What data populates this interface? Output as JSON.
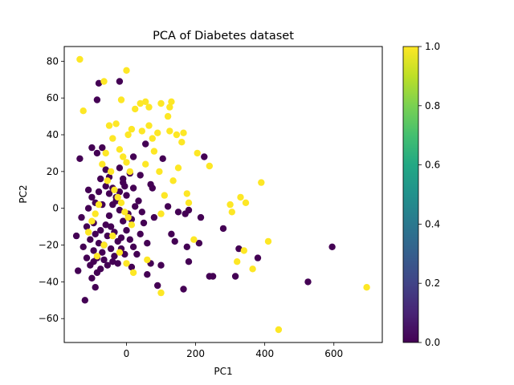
{
  "chart_data": {
    "type": "scatter",
    "title": "PCA of Diabetes dataset",
    "xlabel": "PC1",
    "ylabel": "PC2",
    "xlim": [
      -180,
      740
    ],
    "ylim": [
      -73,
      88
    ],
    "xticks": [
      0,
      200,
      400,
      600
    ],
    "xtick_labels": [
      "0",
      "200",
      "400",
      "600"
    ],
    "yticks": [
      -60,
      -40,
      -20,
      0,
      20,
      40,
      60,
      80
    ],
    "ytick_labels": [
      "−60",
      "−40",
      "−20",
      "0",
      "20",
      "40",
      "60",
      "80"
    ],
    "colorbar": {
      "colormap": "viridis",
      "range": [
        0.0,
        1.0
      ],
      "ticks": [
        0.0,
        0.2,
        0.4,
        0.6,
        0.8,
        1.0
      ],
      "tick_labels": [
        "0.0",
        "0.2",
        "0.4",
        "0.6",
        "0.8",
        "1.0"
      ]
    },
    "colors": {
      "class_0": "#440154",
      "class_1": "#fde725"
    },
    "series": [
      {
        "class_value": 0,
        "points": [
          [
            -135,
            27
          ],
          [
            -80,
            68
          ],
          [
            -85,
            59
          ],
          [
            -20,
            69
          ],
          [
            -100,
            33
          ],
          [
            -85,
            30
          ],
          [
            -70,
            33
          ],
          [
            -60,
            21
          ],
          [
            -75,
            16
          ],
          [
            -50,
            17
          ],
          [
            -20,
            22
          ],
          [
            -10,
            16
          ],
          [
            -5,
            12
          ],
          [
            40,
            18
          ],
          [
            20,
            28
          ],
          [
            55,
            35
          ],
          [
            105,
            27
          ],
          [
            70,
            13
          ],
          [
            75,
            11
          ],
          [
            120,
            1
          ],
          [
            170,
            -3
          ],
          [
            180,
            -1
          ],
          [
            215,
            -5
          ],
          [
            225,
            28
          ],
          [
            280,
            -11
          ],
          [
            240,
            -37
          ],
          [
            250,
            -37
          ],
          [
            315,
            -37
          ],
          [
            325,
            -22
          ],
          [
            380,
            -27
          ],
          [
            525,
            -40
          ],
          [
            595,
            -21
          ],
          [
            165,
            -44
          ],
          [
            90,
            -42
          ],
          [
            60,
            -36
          ],
          [
            15,
            -32
          ],
          [
            -40,
            -29
          ],
          [
            -90,
            -43
          ],
          [
            -100,
            -38
          ],
          [
            -120,
            -50
          ],
          [
            -140,
            -34
          ],
          [
            -145,
            -15
          ],
          [
            -130,
            -5
          ],
          [
            -110,
            0
          ],
          [
            -95,
            -8
          ],
          [
            -90,
            -14
          ],
          [
            -80,
            -19
          ],
          [
            -70,
            -24
          ],
          [
            -60,
            -9
          ],
          [
            -50,
            -4
          ],
          [
            -40,
            2
          ],
          [
            -30,
            6
          ],
          [
            -20,
            -1
          ],
          [
            -10,
            -7
          ],
          [
            0,
            -12
          ],
          [
            10,
            -17
          ],
          [
            20,
            -21
          ],
          [
            30,
            -25
          ],
          [
            40,
            -14
          ],
          [
            50,
            -8
          ],
          [
            60,
            -19
          ],
          [
            70,
            -30
          ],
          [
            80,
            -5
          ],
          [
            -125,
            -21
          ],
          [
            -115,
            -27
          ],
          [
            -105,
            -31
          ],
          [
            -95,
            -23
          ],
          [
            -85,
            -27
          ],
          [
            -75,
            -33
          ],
          [
            -65,
            -20
          ],
          [
            -55,
            -15
          ],
          [
            -45,
            -10
          ],
          [
            -35,
            -13
          ],
          [
            -25,
            -18
          ],
          [
            -15,
            -22
          ],
          [
            -5,
            -25
          ],
          [
            5,
            -3
          ],
          [
            15,
            -6
          ],
          [
            25,
            1
          ],
          [
            35,
            4
          ],
          [
            45,
            -2
          ],
          [
            -110,
            10
          ],
          [
            -100,
            6
          ],
          [
            -90,
            3
          ],
          [
            -80,
            9
          ],
          [
            -70,
            2
          ],
          [
            -60,
            12
          ],
          [
            -50,
            8
          ],
          [
            -40,
            11
          ],
          [
            -30,
            4
          ],
          [
            -20,
            9
          ],
          [
            -10,
            14
          ],
          [
            0,
            7
          ],
          [
            10,
            19
          ],
          [
            20,
            11
          ],
          [
            -115,
            -10
          ],
          [
            -105,
            -17
          ],
          [
            -95,
            -29
          ],
          [
            -85,
            -35
          ],
          [
            -75,
            -12
          ],
          [
            -65,
            -28
          ],
          [
            -55,
            -31
          ],
          [
            -45,
            -22
          ],
          [
            -35,
            -26
          ],
          [
            -25,
            -30
          ],
          [
            -15,
            -16
          ],
          [
            150,
            -2
          ],
          [
            175,
            -21
          ],
          [
            180,
            -29
          ],
          [
            210,
            -19
          ],
          [
            100,
            -31
          ],
          [
            140,
            -18
          ],
          [
            130,
            -14
          ]
        ]
      },
      {
        "class_value": 1,
        "points": [
          [
            -135,
            81
          ],
          [
            -125,
            53
          ],
          [
            0,
            75
          ],
          [
            -15,
            59
          ],
          [
            -65,
            69
          ],
          [
            25,
            54
          ],
          [
            40,
            57
          ],
          [
            55,
            58
          ],
          [
            65,
            55
          ],
          [
            100,
            57
          ],
          [
            125,
            55
          ],
          [
            130,
            58
          ],
          [
            120,
            50
          ],
          [
            15,
            43
          ],
          [
            5,
            40
          ],
          [
            45,
            42
          ],
          [
            65,
            45
          ],
          [
            75,
            38
          ],
          [
            90,
            41
          ],
          [
            125,
            42
          ],
          [
            145,
            40
          ],
          [
            160,
            36
          ],
          [
            165,
            41
          ],
          [
            240,
            23
          ],
          [
            150,
            22
          ],
          [
            175,
            8
          ],
          [
            180,
            3
          ],
          [
            135,
            15
          ],
          [
            205,
            30
          ],
          [
            300,
            2
          ],
          [
            330,
            6
          ],
          [
            345,
            3
          ],
          [
            390,
            14
          ],
          [
            305,
            -2
          ],
          [
            410,
            -18
          ],
          [
            340,
            -23
          ],
          [
            195,
            -17
          ],
          [
            320,
            -29
          ],
          [
            365,
            -33
          ],
          [
            100,
            -46
          ],
          [
            440,
            -66
          ],
          [
            695,
            -43
          ],
          [
            -50,
            45
          ],
          [
            -40,
            38
          ],
          [
            -30,
            46
          ],
          [
            -20,
            32
          ],
          [
            -10,
            28
          ],
          [
            0,
            25
          ],
          [
            10,
            20
          ],
          [
            -60,
            30
          ],
          [
            -70,
            24
          ],
          [
            -55,
            15
          ],
          [
            -45,
            20
          ],
          [
            -35,
            10
          ],
          [
            -25,
            6
          ],
          [
            -15,
            3
          ],
          [
            -5,
            -2
          ],
          [
            5,
            -5
          ],
          [
            15,
            -9
          ],
          [
            -80,
            2
          ],
          [
            -90,
            -3
          ],
          [
            -100,
            -7
          ],
          [
            -110,
            -13
          ],
          [
            -85,
            -26
          ],
          [
            -65,
            -20
          ],
          [
            -40,
            -15
          ],
          [
            -20,
            -24
          ],
          [
            0,
            -30
          ],
          [
            20,
            -35
          ],
          [
            60,
            -28
          ],
          [
            100,
            -3
          ],
          [
            110,
            7
          ],
          [
            95,
            20
          ],
          [
            80,
            31
          ],
          [
            55,
            24
          ]
        ]
      }
    ]
  }
}
